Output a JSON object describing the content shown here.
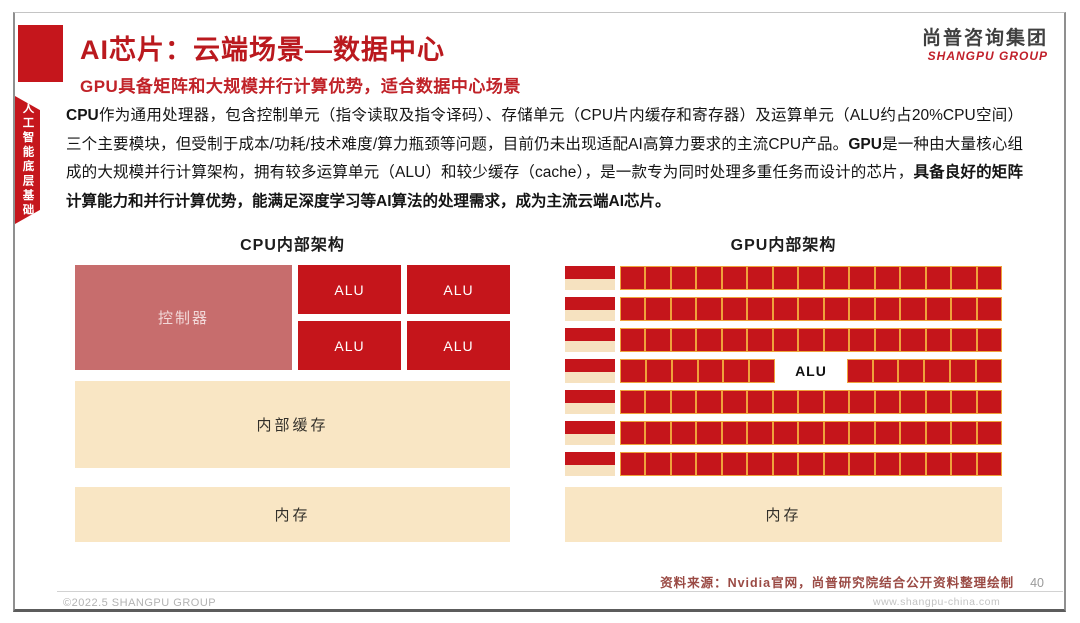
{
  "header": {
    "title": "AI芯片：云端场景—数据中心",
    "subtitle": "GPU具备矩阵和大规模并行计算优势，适合数据中心场景",
    "brand": {
      "cn": "尚普咨询集团",
      "en": "SHANGPU GROUP"
    }
  },
  "sidebar": {
    "ribbon_text": "人工智能底层基础"
  },
  "body": {
    "segments": [
      {
        "text": "CPU",
        "bold": true
      },
      {
        "text": "作为通用处理器，包含控制单元（指令读取及指令译码）、存储单元（CPU片内缓存和寄存器）及运算单元（ALU约占20%CPU空间）三个主要模块，但受制于成本/功耗/技术难度/算力瓶颈等问题，目前仍未出现适配AI高算力要求的主流CPU产品。",
        "bold": false
      },
      {
        "text": "GPU",
        "bold": true
      },
      {
        "text": "是一种由大量核心组成的大规模并行计算架构，拥有较多运算单元（ALU）和较少缓存（cache），是一款专为同时处理多重任务而设计的芯片，",
        "bold": false
      },
      {
        "text": "具备良好的矩阵计算能力和并行计算优势，能满足深度学习等AI算法的处理需求，成为主流云端AI芯片。",
        "bold": true
      }
    ]
  },
  "cpu": {
    "title": "CPU内部架构",
    "controller_label": "控制器",
    "alu_label": "ALU",
    "alu_count": 4,
    "cache_label": "内部缓存",
    "memory_label": "内存"
  },
  "gpu": {
    "title": "GPU内部架构",
    "alu_label": "ALU",
    "rows": 7,
    "cells_per_row": 15,
    "alu_row_index": 3,
    "alu_left_cells": 6,
    "alu_span_cells": 3,
    "alu_right_cells": 6,
    "memory_label": "内存"
  },
  "footer": {
    "source": "资料来源：Nvidia官网，尚普研究院结合公开资料整理绘制",
    "page_number": "40",
    "copyright": "©2022.5 SHANGPU GROUP",
    "website": "www.shangpu-china.com"
  },
  "colors": {
    "accent_red": "#c5161c",
    "title_red": "#ba191e",
    "controller_pink": "#c76d6d",
    "cream": "#f9e6c4",
    "cell_border_orange": "#efa23b",
    "source_text": "#9a4a44",
    "footer_gray": "#b3b3b3"
  }
}
